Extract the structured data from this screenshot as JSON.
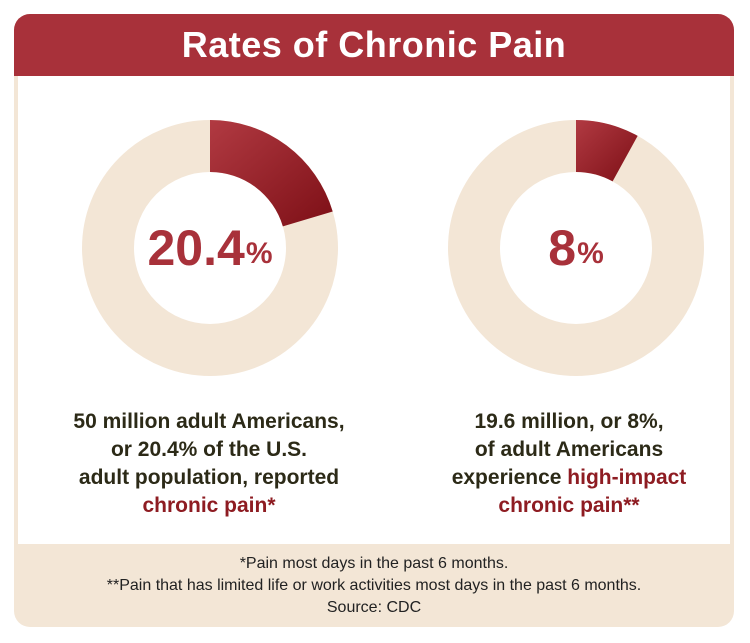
{
  "title": "Rates of Chronic Pain",
  "colors": {
    "header": "#a8313a",
    "accent": "#8e1c22",
    "track": "#f3e6d6",
    "text": "#2c2a17"
  },
  "chart_data": [
    {
      "type": "pie",
      "values": [
        20.4,
        79.6
      ],
      "center_value": "20.4",
      "center_unit": "%",
      "caption_lines": [
        "50 million adult Americans,",
        "or 20.4% of the U.S.",
        "adult population, reported"
      ],
      "caption_highlight": "chronic pain*"
    },
    {
      "type": "pie",
      "values": [
        8,
        92
      ],
      "center_value": "8",
      "center_unit": "%",
      "caption_lines": [
        "19.6 million, or 8%,",
        "of adult Americans",
        "experience"
      ],
      "caption_highlight": "high-impact chronic pain**"
    }
  ],
  "footer": {
    "note1": "*Pain most days in the past 6 months.",
    "note2": "**Pain that has limited life or work activities most days in the past 6 months.",
    "source": "Source: CDC"
  }
}
